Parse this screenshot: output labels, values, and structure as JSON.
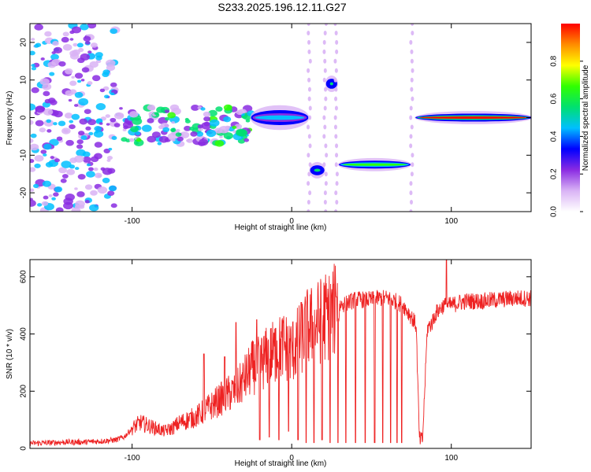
{
  "title": "S233.2025.196.12.11.G27",
  "colors": {
    "snr_line": "#ee2222",
    "colormap": [
      "#ffffff",
      "#d9b3f5",
      "#8a2be2",
      "#0000ff",
      "#00bfff",
      "#00e070",
      "#30ff00",
      "#ffff00",
      "#ff8c00",
      "#ff0000"
    ]
  },
  "chart_data": [
    {
      "type": "heatmap",
      "title": "S233.2025.196.12.11.G27",
      "xlabel": "Height of straight line (km)",
      "ylabel": "Frequency (Hz)",
      "xlim": [
        -164,
        150
      ],
      "ylim": [
        -25,
        25
      ],
      "xticks": [
        -100,
        0,
        100
      ],
      "yticks": [
        -20,
        -10,
        0,
        10,
        20
      ],
      "colorbar": {
        "label": "Normalized spectral amplitude",
        "range": [
          0.0,
          1.0
        ],
        "ticks": [
          0.0,
          0.2,
          0.4,
          0.6,
          0.8
        ]
      },
      "features": [
        {
          "x_range": [
            -164,
            -110
          ],
          "freq_center": 0,
          "freq_spread": 25,
          "amplitude": 0.25,
          "kind": "diffuse noise"
        },
        {
          "x_range": [
            -112,
            -25
          ],
          "freq_center": -2,
          "freq_spread": 5,
          "amplitude": 0.35,
          "kind": "scattered band"
        },
        {
          "x_range": [
            -25,
            10
          ],
          "freq_center": 0,
          "freq_spread": 1.5,
          "amplitude": 0.45,
          "kind": "band"
        },
        {
          "x_range": [
            12,
            20
          ],
          "freq_center": -14,
          "freq_spread": 1,
          "amplitude": 0.55,
          "kind": "band"
        },
        {
          "x_range": [
            22,
            28
          ],
          "freq_center": 9,
          "freq_spread": 1,
          "amplitude": 0.5,
          "kind": "blob"
        },
        {
          "x_range": [
            30,
            74
          ],
          "freq_center": -12.5,
          "freq_spread": 0.8,
          "amplitude": 0.7,
          "kind": "line"
        },
        {
          "x_range": [
            78,
            150
          ],
          "freq_center": 0,
          "freq_spread": 0.8,
          "amplitude": 0.95,
          "kind": "line"
        }
      ]
    },
    {
      "type": "line",
      "xlabel": "Height of straight line (km)",
      "ylabel": "SNR (10 * v/v)",
      "xlim": [
        -164,
        150
      ],
      "ylim": [
        0,
        660
      ],
      "xticks": [
        -100,
        0,
        100
      ],
      "yticks": [
        0,
        200,
        400,
        600
      ],
      "grid": false,
      "series": [
        {
          "x": [
            -164,
            -150,
            -140,
            -130,
            -120,
            -110,
            -105,
            -100,
            -95,
            -90,
            -85,
            -80,
            -75,
            -70,
            -65,
            -60,
            -55,
            -50,
            -45,
            -40,
            -35,
            -30,
            -25,
            -20,
            -15,
            -10,
            -5,
            0,
            5,
            10,
            15,
            20,
            25,
            30,
            35,
            40,
            45,
            50,
            55,
            60,
            65,
            70,
            75,
            78,
            80,
            82,
            85,
            88,
            90,
            95,
            100,
            105,
            110,
            120,
            130,
            140,
            150
          ],
          "y": [
            18,
            20,
            22,
            22,
            25,
            30,
            40,
            70,
            90,
            80,
            70,
            60,
            70,
            90,
            100,
            110,
            130,
            150,
            170,
            190,
            200,
            240,
            280,
            300,
            320,
            340,
            360,
            340,
            380,
            420,
            430,
            460,
            470,
            500,
            510,
            520,
            520,
            520,
            525,
            525,
            515,
            500,
            460,
            430,
            30,
            30,
            420,
            440,
            470,
            500,
            500,
            510,
            515,
            515,
            520,
            525,
            525
          ]
        }
      ],
      "dropouts": [
        {
          "x": -20,
          "y": 30
        },
        {
          "x": -14,
          "y": 40
        },
        {
          "x": -8,
          "y": 30
        },
        {
          "x": -2,
          "y": 60
        },
        {
          "x": 4,
          "y": 30
        },
        {
          "x": 9,
          "y": 20
        },
        {
          "x": 14,
          "y": 20
        },
        {
          "x": 19,
          "y": 30
        },
        {
          "x": 24,
          "y": 20
        },
        {
          "x": 29,
          "y": 20
        },
        {
          "x": 34,
          "y": 20
        },
        {
          "x": 40,
          "y": 20
        },
        {
          "x": 46,
          "y": 20
        },
        {
          "x": 52,
          "y": 20
        },
        {
          "x": 57,
          "y": 20
        },
        {
          "x": 62,
          "y": 20
        },
        {
          "x": 66,
          "y": 20
        },
        {
          "x": 69,
          "y": 20
        }
      ],
      "peaks": [
        {
          "x": -55,
          "y": 330
        },
        {
          "x": -42,
          "y": 320
        },
        {
          "x": -35,
          "y": 440
        },
        {
          "x": -22,
          "y": 450
        },
        {
          "x": -10,
          "y": 420
        },
        {
          "x": 6,
          "y": 510
        },
        {
          "x": 28,
          "y": 530
        },
        {
          "x": 97,
          "y": 660
        }
      ]
    }
  ]
}
